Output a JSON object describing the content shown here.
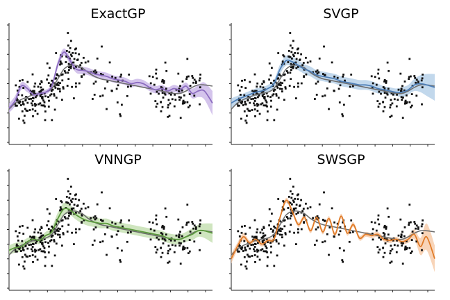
{
  "figure": {
    "layout": "2x2 grid"
  },
  "chart_data": [
    {
      "type": "line",
      "title": "ExactGP",
      "xlabel": "",
      "ylabel": "",
      "xlim": [
        0,
        10
      ],
      "ylim": [
        -2.4,
        2.6
      ],
      "grid": false,
      "colors": {
        "model": "#8c6cc0",
        "band": "#c5b0e6",
        "reference": "#6e6e6e",
        "points": "#111111"
      },
      "series": [
        {
          "x": [
            0,
            0.3,
            0.6,
            0.9,
            1.2,
            1.5,
            1.8,
            2.1,
            2.4,
            2.7,
            3.0,
            3.3,
            3.6,
            3.9,
            4.2,
            4.5,
            4.8,
            5.1,
            5.4,
            5.7,
            6.0,
            6.3,
            6.6,
            6.9,
            7.2,
            7.5,
            7.8,
            8.1,
            8.4,
            8.7,
            9.0,
            9.3,
            9.6,
            10.0
          ],
          "y": [
            -0.9,
            -0.6,
            0.0,
            -0.1,
            -0.35,
            -0.3,
            -0.25,
            0.0,
            0.9,
            1.4,
            1.05,
            0.7,
            0.65,
            0.6,
            0.5,
            0.45,
            0.4,
            0.3,
            0.25,
            0.2,
            0.1,
            0.15,
            0.1,
            -0.05,
            -0.15,
            -0.1,
            -0.2,
            -0.1,
            -0.15,
            0.0,
            -0.3,
            -0.2,
            -0.2,
            -0.7
          ]
        },
        {
          "x": [
            0,
            0.3,
            0.6,
            0.9,
            1.2,
            1.5,
            1.8,
            2.1,
            2.4,
            2.7,
            3.0,
            3.3,
            3.6,
            3.9,
            4.2,
            4.5,
            4.8,
            5.1,
            5.4,
            5.7,
            6.0,
            6.3,
            6.6,
            6.9,
            7.2,
            7.5,
            7.8,
            8.1,
            8.4,
            8.7,
            9.0,
            9.3,
            9.6,
            10.0
          ],
          "y": [
            -0.95,
            -0.7,
            -0.55,
            -0.45,
            -0.35,
            -0.3,
            -0.25,
            -0.1,
            0.3,
            0.7,
            0.85,
            0.85,
            0.75,
            0.55,
            0.4,
            0.3,
            0.25,
            0.2,
            0.15,
            0.1,
            0.05,
            0.0,
            -0.05,
            -0.1,
            -0.15,
            -0.2,
            -0.25,
            -0.3,
            -0.3,
            -0.2,
            -0.05,
            0.05,
            0.05,
            0.0
          ]
        }
      ],
      "band": {
        "lower": [
          -1.1,
          -0.8,
          -0.15,
          -0.25,
          -0.45,
          -0.4,
          -0.35,
          -0.1,
          0.75,
          1.25,
          0.9,
          0.55,
          0.5,
          0.45,
          0.35,
          0.3,
          0.25,
          0.15,
          0.1,
          0.05,
          -0.05,
          0.0,
          -0.05,
          -0.2,
          -0.3,
          -0.25,
          -0.35,
          -0.25,
          -0.3,
          -0.15,
          -0.5,
          -0.45,
          -0.55,
          -1.2
        ],
        "upper": [
          -0.7,
          -0.4,
          0.15,
          0.05,
          -0.25,
          -0.2,
          -0.15,
          0.1,
          1.05,
          1.55,
          1.2,
          0.85,
          0.8,
          0.75,
          0.65,
          0.6,
          0.55,
          0.45,
          0.4,
          0.35,
          0.25,
          0.3,
          0.25,
          0.1,
          0.0,
          0.05,
          -0.05,
          0.05,
          0.0,
          0.15,
          -0.1,
          0.05,
          0.15,
          -0.2
        ]
      }
    },
    {
      "type": "line",
      "title": "SVGP",
      "xlabel": "",
      "ylabel": "",
      "xlim": [
        0,
        10
      ],
      "ylim": [
        -2.4,
        2.6
      ],
      "grid": false,
      "colors": {
        "model": "#4e7fb8",
        "band": "#aecbe6",
        "reference": "#6e6e6e",
        "points": "#111111"
      },
      "series": [
        {
          "x": [
            0,
            0.3,
            0.6,
            0.9,
            1.2,
            1.5,
            1.8,
            2.1,
            2.4,
            2.7,
            3.0,
            3.3,
            3.6,
            3.9,
            4.2,
            4.5,
            4.8,
            5.1,
            5.4,
            5.7,
            6.0,
            6.3,
            6.6,
            6.9,
            7.2,
            7.5,
            7.8,
            8.1,
            8.4,
            8.7,
            9.0,
            9.3,
            9.6,
            10.0
          ],
          "y": [
            -0.7,
            -0.55,
            -0.45,
            -0.35,
            -0.25,
            -0.2,
            -0.1,
            0.1,
            0.7,
            1.05,
            1.0,
            0.85,
            0.7,
            0.6,
            0.45,
            0.4,
            0.35,
            0.3,
            0.2,
            0.15,
            0.1,
            0.05,
            0.05,
            0.0,
            -0.1,
            -0.15,
            -0.2,
            -0.25,
            -0.25,
            -0.15,
            0.05,
            0.1,
            0.05,
            -0.05
          ]
        },
        {
          "x": [
            0,
            0.3,
            0.6,
            0.9,
            1.2,
            1.5,
            1.8,
            2.1,
            2.4,
            2.7,
            3.0,
            3.3,
            3.6,
            3.9,
            4.2,
            4.5,
            4.8,
            5.1,
            5.4,
            5.7,
            6.0,
            6.3,
            6.6,
            6.9,
            7.2,
            7.5,
            7.8,
            8.1,
            8.4,
            8.7,
            9.0,
            9.3,
            9.6,
            10.0
          ],
          "y": [
            -0.95,
            -0.7,
            -0.55,
            -0.45,
            -0.35,
            -0.3,
            -0.25,
            -0.1,
            0.3,
            0.7,
            0.85,
            0.85,
            0.75,
            0.55,
            0.4,
            0.3,
            0.25,
            0.2,
            0.15,
            0.1,
            0.05,
            0.0,
            -0.05,
            -0.1,
            -0.15,
            -0.2,
            -0.25,
            -0.3,
            -0.3,
            -0.2,
            -0.05,
            0.05,
            0.05,
            0.0
          ]
        }
      ],
      "band": {
        "lower": [
          -0.9,
          -0.7,
          -0.6,
          -0.5,
          -0.4,
          -0.35,
          -0.25,
          -0.05,
          0.5,
          0.85,
          0.8,
          0.65,
          0.5,
          0.4,
          0.25,
          0.2,
          0.15,
          0.1,
          0.0,
          -0.05,
          -0.1,
          -0.15,
          -0.15,
          -0.2,
          -0.3,
          -0.3,
          -0.35,
          -0.4,
          -0.45,
          -0.35,
          -0.2,
          -0.25,
          -0.4,
          -0.6
        ],
        "upper": [
          -0.5,
          -0.4,
          -0.3,
          -0.2,
          -0.1,
          -0.05,
          0.05,
          0.25,
          0.9,
          1.25,
          1.2,
          1.05,
          0.9,
          0.8,
          0.65,
          0.6,
          0.55,
          0.5,
          0.4,
          0.35,
          0.3,
          0.25,
          0.25,
          0.2,
          0.1,
          0.0,
          -0.05,
          -0.1,
          -0.05,
          0.05,
          0.3,
          0.45,
          0.5,
          0.5
        ]
      }
    },
    {
      "type": "line",
      "title": "VNNGP",
      "xlabel": "",
      "ylabel": "",
      "xlim": [
        0,
        10
      ],
      "ylim": [
        -2.4,
        2.6
      ],
      "grid": false,
      "colors": {
        "model": "#5b9a3c",
        "band": "#bfdcaa",
        "reference": "#6e6e6e",
        "points": "#111111"
      },
      "series": [
        {
          "x": [
            0,
            0.3,
            0.6,
            0.9,
            1.2,
            1.5,
            1.8,
            2.1,
            2.4,
            2.7,
            3.0,
            3.3,
            3.6,
            3.9,
            4.2,
            4.5,
            4.8,
            5.1,
            5.4,
            5.7,
            6.0,
            6.3,
            6.6,
            6.9,
            7.2,
            7.5,
            7.8,
            8.1,
            8.4,
            8.7,
            9.0,
            9.3,
            9.6,
            10.0
          ],
          "y": [
            -0.75,
            -0.65,
            -0.6,
            -0.4,
            -0.3,
            -0.35,
            -0.15,
            0.0,
            0.55,
            0.95,
            0.9,
            0.7,
            0.55,
            0.45,
            0.4,
            0.35,
            0.35,
            0.25,
            0.2,
            0.15,
            0.1,
            0.05,
            0.0,
            -0.05,
            -0.1,
            -0.15,
            -0.25,
            -0.3,
            -0.3,
            -0.2,
            -0.1,
            0.05,
            0.05,
            -0.05
          ]
        },
        {
          "x": [
            0,
            0.3,
            0.6,
            0.9,
            1.2,
            1.5,
            1.8,
            2.1,
            2.4,
            2.7,
            3.0,
            3.3,
            3.6,
            3.9,
            4.2,
            4.5,
            4.8,
            5.1,
            5.4,
            5.7,
            6.0,
            6.3,
            6.6,
            6.9,
            7.2,
            7.5,
            7.8,
            8.1,
            8.4,
            8.7,
            9.0,
            9.3,
            9.6,
            10.0
          ],
          "y": [
            -0.95,
            -0.7,
            -0.55,
            -0.45,
            -0.35,
            -0.3,
            -0.25,
            -0.1,
            0.3,
            0.7,
            0.85,
            0.85,
            0.75,
            0.55,
            0.4,
            0.3,
            0.25,
            0.2,
            0.15,
            0.1,
            0.05,
            0.0,
            -0.05,
            -0.1,
            -0.15,
            -0.2,
            -0.25,
            -0.3,
            -0.3,
            -0.2,
            -0.05,
            0.05,
            0.05,
            0.0
          ]
        }
      ],
      "band": {
        "lower": [
          -0.95,
          -0.85,
          -0.8,
          -0.55,
          -0.45,
          -0.5,
          -0.3,
          -0.2,
          0.3,
          0.7,
          0.7,
          0.5,
          0.35,
          0.25,
          0.2,
          0.15,
          0.15,
          0.05,
          0.0,
          -0.05,
          -0.1,
          -0.15,
          -0.2,
          -0.25,
          -0.3,
          -0.35,
          -0.45,
          -0.5,
          -0.5,
          -0.4,
          -0.35,
          -0.2,
          -0.25,
          -0.45
        ],
        "upper": [
          -0.55,
          -0.45,
          -0.4,
          -0.25,
          -0.15,
          -0.2,
          0.0,
          0.2,
          0.8,
          1.2,
          1.1,
          0.9,
          0.75,
          0.65,
          0.6,
          0.55,
          0.55,
          0.45,
          0.4,
          0.35,
          0.3,
          0.25,
          0.2,
          0.15,
          0.1,
          0.05,
          -0.05,
          -0.1,
          -0.1,
          0.0,
          0.15,
          0.3,
          0.35,
          0.35
        ]
      }
    },
    {
      "type": "line",
      "title": "SWSGP",
      "xlabel": "",
      "ylabel": "",
      "xlim": [
        0,
        10
      ],
      "ylim": [
        -2.4,
        2.6
      ],
      "grid": false,
      "colors": {
        "model": "#e07b28",
        "band": "#f5c6a0",
        "reference": "#6e6e6e",
        "points": "#111111"
      },
      "series": [
        {
          "x": [
            0,
            0.3,
            0.6,
            0.9,
            1.2,
            1.5,
            1.8,
            2.1,
            2.4,
            2.7,
            3.0,
            3.3,
            3.6,
            3.9,
            4.2,
            4.5,
            4.8,
            5.1,
            5.4,
            5.7,
            6.0,
            6.3,
            6.6,
            6.9,
            7.2,
            7.5,
            7.8,
            8.1,
            8.4,
            8.7,
            9.0,
            9.3,
            9.6,
            10.0
          ],
          "y": [
            -1.1,
            -0.6,
            -0.2,
            -0.45,
            -0.3,
            -0.5,
            -0.35,
            -0.3,
            0.6,
            1.3,
            0.85,
            0.3,
            0.6,
            0.05,
            0.6,
            0.0,
            0.55,
            -0.1,
            0.65,
            -0.05,
            0.3,
            -0.25,
            -0.1,
            -0.15,
            -0.1,
            -0.3,
            -0.35,
            -0.3,
            -0.4,
            -0.3,
            -0.1,
            -0.6,
            -0.2,
            -1.1
          ]
        },
        {
          "x": [
            0,
            0.3,
            0.6,
            0.9,
            1.2,
            1.5,
            1.8,
            2.1,
            2.4,
            2.7,
            3.0,
            3.3,
            3.6,
            3.9,
            4.2,
            4.5,
            4.8,
            5.1,
            5.4,
            5.7,
            6.0,
            6.3,
            6.6,
            6.9,
            7.2,
            7.5,
            7.8,
            8.1,
            8.4,
            8.7,
            9.0,
            9.3,
            9.6,
            10.0
          ],
          "y": [
            -0.95,
            -0.7,
            -0.55,
            -0.45,
            -0.35,
            -0.3,
            -0.25,
            -0.1,
            0.3,
            0.7,
            0.85,
            0.85,
            0.75,
            0.55,
            0.4,
            0.3,
            0.25,
            0.2,
            0.15,
            0.1,
            0.05,
            0.0,
            -0.05,
            -0.1,
            -0.15,
            -0.2,
            -0.25,
            -0.3,
            -0.3,
            -0.2,
            -0.05,
            0.05,
            0.05,
            0.0
          ]
        }
      ],
      "band": {
        "lower": [
          -1.3,
          -0.75,
          -0.35,
          -0.55,
          -0.4,
          -0.6,
          -0.45,
          -0.4,
          0.5,
          1.2,
          0.75,
          0.2,
          0.5,
          -0.05,
          0.5,
          -0.1,
          0.45,
          -0.2,
          0.55,
          -0.15,
          0.2,
          -0.35,
          -0.2,
          -0.25,
          -0.2,
          -0.4,
          -0.45,
          -0.4,
          -0.5,
          -0.45,
          -0.3,
          -0.95,
          -0.75,
          -1.65
        ],
        "upper": [
          -0.9,
          -0.45,
          -0.05,
          -0.35,
          -0.2,
          -0.4,
          -0.25,
          -0.2,
          0.7,
          1.4,
          0.95,
          0.4,
          0.7,
          0.15,
          0.7,
          0.1,
          0.65,
          0.0,
          0.75,
          0.05,
          0.4,
          -0.15,
          0.0,
          -0.05,
          0.0,
          -0.2,
          -0.25,
          -0.2,
          -0.3,
          -0.15,
          0.1,
          -0.25,
          0.35,
          -0.55
        ]
      }
    }
  ]
}
